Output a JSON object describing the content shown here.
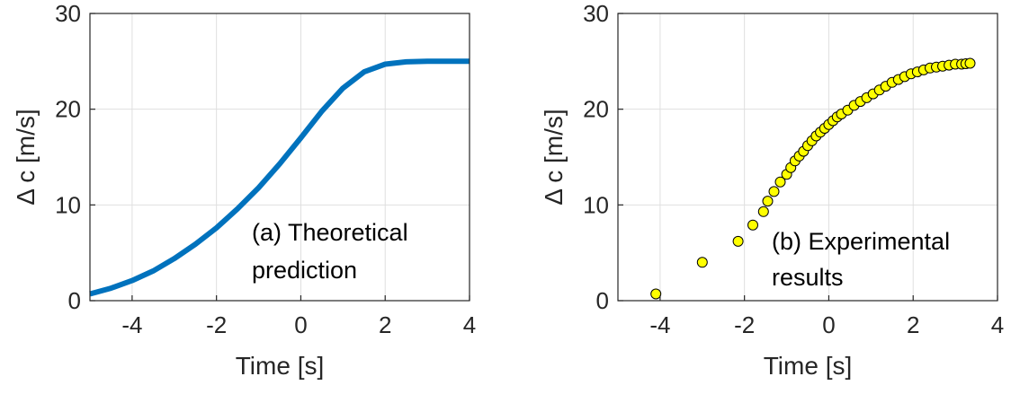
{
  "chart_data": [
    {
      "type": "line",
      "xlabel": "Time [s]",
      "ylabel": "Δ c [m/s]",
      "xlim": [
        -5,
        4
      ],
      "ylim": [
        0,
        30
      ],
      "xticks": [
        -4,
        -2,
        0,
        2,
        4
      ],
      "yticks": [
        0,
        10,
        20,
        30
      ],
      "grid": true,
      "annotation": [
        "(a) Theoretical",
        "prediction"
      ],
      "series": [
        {
          "color": "#0072BD",
          "x": [
            -5,
            -4.5,
            -4,
            -3.5,
            -3,
            -2.5,
            -2,
            -1.5,
            -1,
            -0.5,
            0,
            0.5,
            1,
            1.5,
            2,
            2.5,
            3,
            3.5,
            4
          ],
          "y": [
            0.7,
            1.3,
            2.1,
            3.1,
            4.4,
            5.9,
            7.6,
            9.6,
            11.8,
            14.3,
            17.0,
            19.8,
            22.2,
            23.9,
            24.7,
            24.95,
            25.0,
            25.0,
            25.0
          ]
        }
      ]
    },
    {
      "type": "scatter",
      "xlabel": "Time [s]",
      "ylabel": "Δ c [m/s]",
      "xlim": [
        -5,
        4
      ],
      "ylim": [
        0,
        30
      ],
      "xticks": [
        -4,
        -2,
        0,
        2,
        4
      ],
      "yticks": [
        0,
        10,
        20,
        30
      ],
      "grid": true,
      "annotation": [
        "(b) Experimental",
        "results"
      ],
      "series": [
        {
          "marker_fill": "#FFFF00",
          "marker_edge": "#000000",
          "x": [
            -4.1,
            -3.0,
            -2.15,
            -1.8,
            -1.55,
            -1.45,
            -1.3,
            -1.15,
            -1.0,
            -0.9,
            -0.8,
            -0.7,
            -0.6,
            -0.5,
            -0.4,
            -0.3,
            -0.2,
            -0.1,
            0.0,
            0.1,
            0.2,
            0.3,
            0.45,
            0.6,
            0.75,
            0.9,
            1.05,
            1.2,
            1.35,
            1.5,
            1.65,
            1.8,
            1.95,
            2.1,
            2.25,
            2.4,
            2.55,
            2.7,
            2.85,
            3.0,
            3.15,
            3.25,
            3.35
          ],
          "y": [
            0.7,
            4.0,
            6.2,
            7.9,
            9.3,
            10.4,
            11.4,
            12.4,
            13.2,
            13.9,
            14.6,
            15.1,
            15.6,
            16.2,
            16.7,
            17.2,
            17.6,
            18.0,
            18.4,
            18.8,
            19.2,
            19.5,
            19.9,
            20.4,
            20.8,
            21.2,
            21.6,
            22.0,
            22.4,
            22.8,
            23.1,
            23.4,
            23.7,
            23.9,
            24.1,
            24.3,
            24.4,
            24.5,
            24.6,
            24.7,
            24.7,
            24.75,
            24.8
          ]
        }
      ]
    }
  ]
}
